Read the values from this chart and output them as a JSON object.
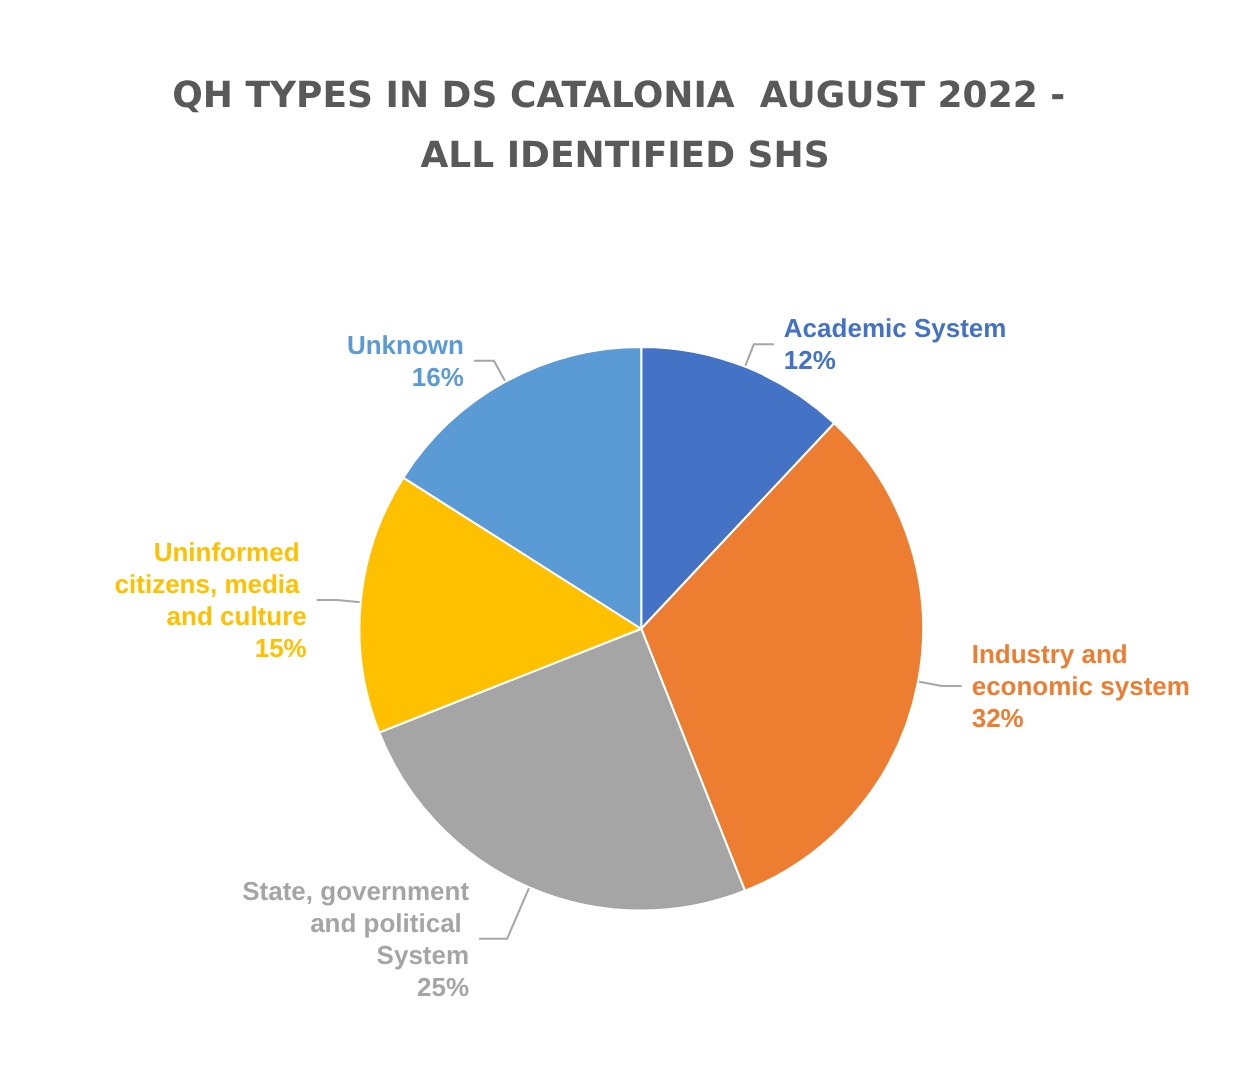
{
  "chart_data": {
    "type": "pie",
    "title": "QH TYPES IN DS CATALONIA  AUGUST 2022 - ALL IDENTIFIED SHS",
    "categories": [
      "Academic System",
      "Industry and economic system",
      "State, government and political System",
      "Uninformed citizens, media and culture",
      "Unknown"
    ],
    "values": [
      12,
      32,
      25,
      15,
      16
    ],
    "value_labels": [
      "12%",
      "32%",
      "25%",
      "15%",
      "16%"
    ],
    "colors": [
      "#4472c4",
      "#ed7d31",
      "#a5a5a5",
      "#ffc000",
      "#5b9bd5"
    ],
    "legend": false
  }
}
